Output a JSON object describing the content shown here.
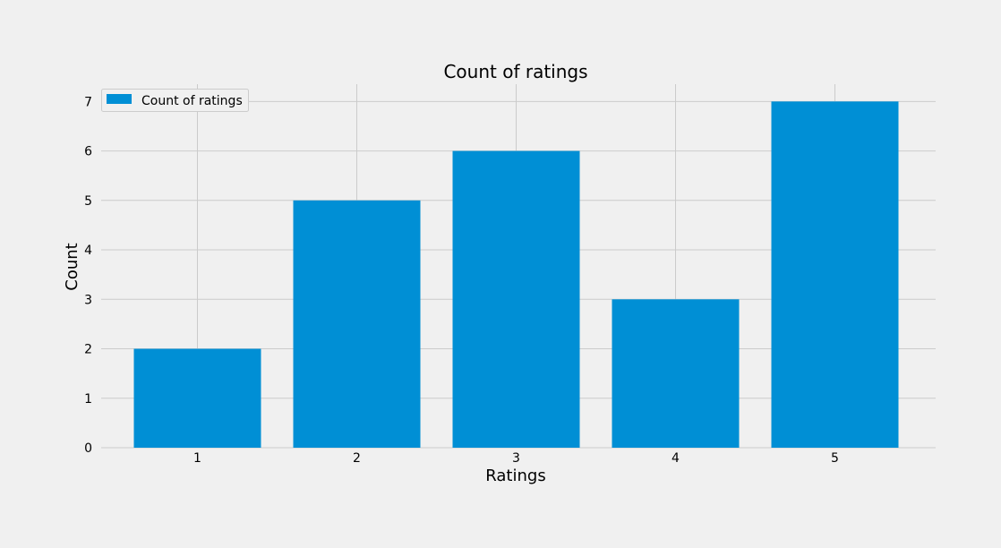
{
  "chart_data": {
    "type": "bar",
    "title": "Count of ratings",
    "xlabel": "Ratings",
    "ylabel": "Count",
    "categories": [
      "1",
      "2",
      "3",
      "4",
      "5"
    ],
    "series": [
      {
        "name": "Count of ratings",
        "values": [
          2,
          5,
          6,
          3,
          7
        ],
        "color": "#008fd5"
      }
    ],
    "yticks": [
      "0",
      "1",
      "2",
      "3",
      "4",
      "5",
      "6",
      "7"
    ],
    "ylim": [
      0,
      7.35
    ],
    "grid": true,
    "legend_position": "top-left",
    "background_color": "#f0f0f0"
  }
}
